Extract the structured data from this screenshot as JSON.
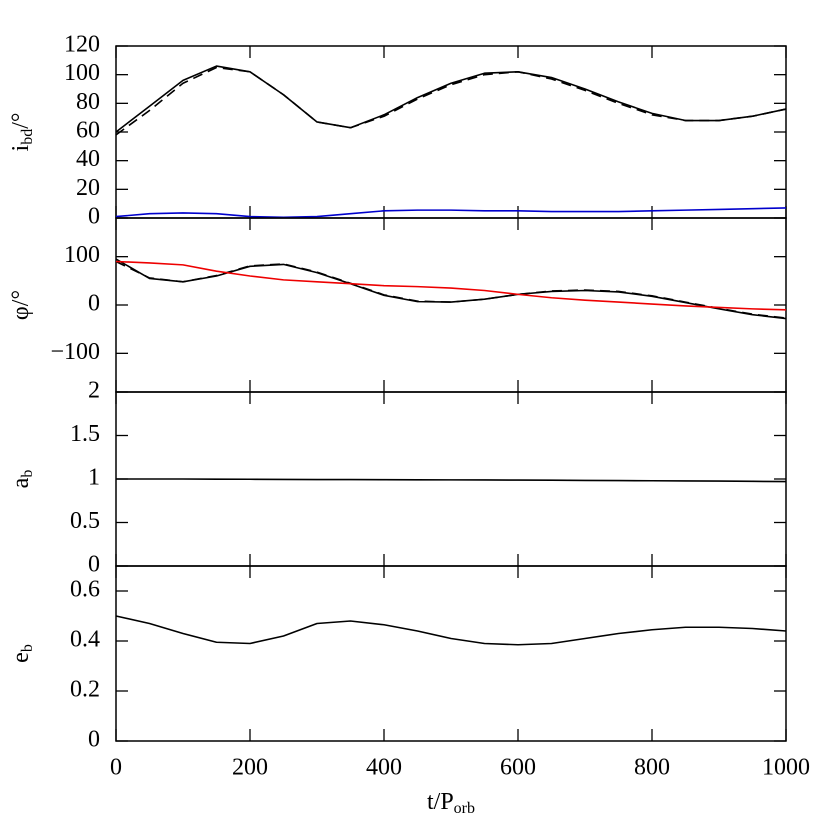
{
  "chart_data": [
    {
      "type": "line",
      "ylabel": [
        "i",
        "bd",
        "/°"
      ],
      "x": [
        0,
        50,
        100,
        150,
        200,
        250,
        300,
        350,
        400,
        450,
        500,
        550,
        600,
        650,
        700,
        750,
        800,
        850,
        900,
        950,
        1000
      ],
      "xlim": [
        0,
        1000
      ],
      "xticks": [
        0,
        200,
        400,
        600,
        800,
        1000
      ],
      "ylim": [
        0,
        120
      ],
      "yticks": [
        0,
        20,
        40,
        60,
        80,
        100,
        120
      ],
      "series": [
        {
          "color": "#000000",
          "dash": false,
          "values": [
            60,
            78,
            96,
            106,
            102,
            86,
            67,
            63,
            72,
            84,
            94,
            101,
            102,
            98,
            90,
            81,
            73,
            68,
            68,
            71,
            76
          ]
        },
        {
          "color": "#000000",
          "dash": true,
          "values": [
            58,
            75,
            94,
            105,
            102,
            86,
            67,
            63,
            71,
            83,
            93,
            100,
            102,
            97,
            89,
            80,
            72,
            68,
            68,
            71,
            76
          ]
        },
        {
          "color": "#0000cc",
          "dash": false,
          "values": [
            1,
            3,
            3.5,
            3,
            1,
            0.5,
            1,
            3,
            5,
            5.5,
            5.5,
            5,
            5,
            4.5,
            4.5,
            4.5,
            5,
            5.5,
            6,
            6.5,
            7
          ]
        }
      ]
    },
    {
      "type": "line",
      "ylabel": [
        "φ/°"
      ],
      "x": [
        0,
        50,
        100,
        150,
        200,
        250,
        300,
        350,
        400,
        450,
        500,
        550,
        600,
        650,
        700,
        750,
        800,
        850,
        900,
        950,
        1000
      ],
      "xlim": [
        0,
        1000
      ],
      "xticks": [
        0,
        200,
        400,
        600,
        800,
        1000
      ],
      "ylim": [
        -180,
        180
      ],
      "yticks": [
        {
          "value": -100,
          "label": "−100"
        },
        0,
        100
      ],
      "series": [
        {
          "color": "#000000",
          "dash": false,
          "values": [
            95,
            55,
            48,
            60,
            80,
            84,
            67,
            44,
            20,
            7,
            6,
            12,
            22,
            28,
            30,
            27,
            18,
            5,
            -8,
            -20,
            -28
          ]
        },
        {
          "color": "#000000",
          "dash": true,
          "values": [
            90,
            56,
            48,
            61,
            81,
            85,
            68,
            45,
            21,
            8,
            6,
            12,
            22,
            29,
            31,
            28,
            19,
            6,
            -7,
            -19,
            -27
          ]
        },
        {
          "color": "#ee0000",
          "dash": false,
          "values": [
            90,
            87,
            83,
            70,
            60,
            52,
            48,
            44,
            40,
            38,
            35,
            30,
            22,
            15,
            10,
            6,
            2,
            -2,
            -5,
            -8,
            -10
          ]
        }
      ]
    },
    {
      "type": "line",
      "ylabel": [
        "a",
        "b"
      ],
      "x": [
        0,
        50,
        100,
        150,
        200,
        250,
        300,
        350,
        400,
        450,
        500,
        550,
        600,
        650,
        700,
        750,
        800,
        850,
        900,
        950,
        1000
      ],
      "xlim": [
        0,
        1000
      ],
      "xticks": [
        0,
        200,
        400,
        600,
        800,
        1000
      ],
      "ylim": [
        0,
        2
      ],
      "yticks": [
        0,
        0.5,
        1,
        1.5,
        2
      ],
      "series": [
        {
          "color": "#000000",
          "dash": false,
          "values": [
            1.0,
            1.0,
            1.0,
            0.998,
            0.997,
            0.995,
            0.994,
            0.993,
            0.992,
            0.991,
            0.99,
            0.989,
            0.988,
            0.986,
            0.984,
            0.982,
            0.98,
            0.978,
            0.976,
            0.973,
            0.97
          ]
        }
      ]
    },
    {
      "type": "line",
      "ylabel": [
        "e",
        "b"
      ],
      "xlabel": [
        "t/P",
        "orb"
      ],
      "x": [
        0,
        50,
        100,
        150,
        200,
        250,
        300,
        350,
        400,
        450,
        500,
        550,
        600,
        650,
        700,
        750,
        800,
        850,
        900,
        950,
        1000
      ],
      "xlim": [
        0,
        1000
      ],
      "xticks": [
        0,
        200,
        400,
        600,
        800,
        1000
      ],
      "ylim": [
        0,
        0.7
      ],
      "yticks": [
        0,
        0.2,
        0.4,
        0.6
      ],
      "series": [
        {
          "color": "#000000",
          "dash": false,
          "values": [
            0.5,
            0.47,
            0.43,
            0.395,
            0.39,
            0.42,
            0.47,
            0.48,
            0.465,
            0.44,
            0.41,
            0.39,
            0.385,
            0.39,
            0.41,
            0.43,
            0.445,
            0.455,
            0.455,
            0.45,
            0.44
          ]
        }
      ]
    }
  ]
}
